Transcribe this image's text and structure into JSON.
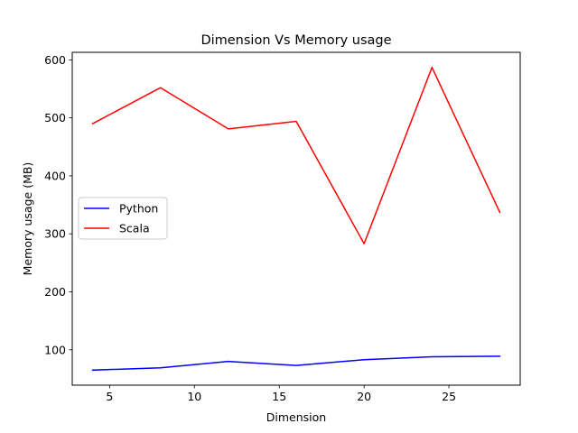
{
  "chart_data": {
    "type": "line",
    "title": "Dimension Vs Memory usage",
    "xlabel": "Dimension",
    "ylabel": "Memory usage (MB)",
    "x": [
      4,
      8,
      12,
      16,
      20,
      24,
      28
    ],
    "xlim": [
      2.8,
      29.2
    ],
    "ylim": [
      39,
      613
    ],
    "xticks": [
      5,
      10,
      15,
      20,
      25
    ],
    "yticks": [
      100,
      200,
      300,
      400,
      500,
      600
    ],
    "grid": false,
    "legend_position": "center-left",
    "series": [
      {
        "name": "Python",
        "color": "#0000ff",
        "values": [
          65,
          69,
          80,
          73,
          83,
          88,
          89
        ]
      },
      {
        "name": "Scala",
        "color": "#ff0000",
        "values": [
          490,
          552,
          481,
          494,
          283,
          587,
          337
        ]
      }
    ]
  }
}
